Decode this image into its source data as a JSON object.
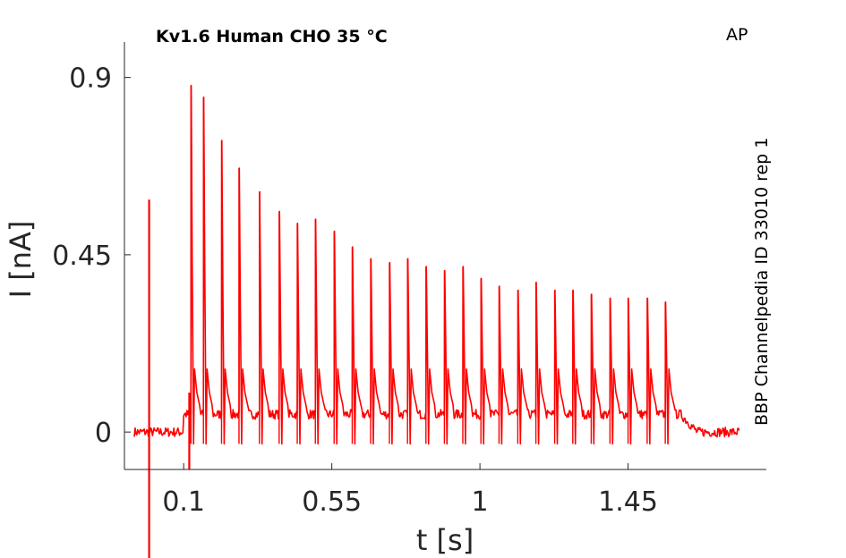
{
  "chart_data": {
    "type": "line",
    "title": "Kv1.6  Human  CHO  35 °C",
    "corner_label": "AP",
    "side_label": "BBP Channelpedia ID 33010 rep 1",
    "xlabel": "t [s]",
    "ylabel": "I [nA]",
    "xlim": [
      -0.08,
      1.87
    ],
    "ylim": [
      -0.095,
      0.99
    ],
    "x_ticks": [
      0.1,
      0.55,
      1,
      1.45
    ],
    "x_tick_labels": [
      "0.1",
      "0.55",
      "1",
      "1.45"
    ],
    "y_ticks": [
      0,
      0.45,
      0.9
    ],
    "y_tick_labels": [
      "0",
      "0.45",
      "0.9"
    ],
    "grid": false,
    "series": [
      {
        "color": "#ff0000",
        "baseline_before": 0.0,
        "baseline_during": 0.045,
        "baseline_after": 0.0,
        "stim_start": 0.1,
        "stim_end": 1.61,
        "t_end": 1.79,
        "artifact": {
          "t": -0.005,
          "top": 0.59,
          "bottom": -0.32
        },
        "spike_times": [
          0.122,
          0.16,
          0.215,
          0.268,
          0.33,
          0.39,
          0.445,
          0.5,
          0.557,
          0.612,
          0.668,
          0.725,
          0.78,
          0.836,
          0.892,
          0.948,
          1.003,
          1.058,
          1.115,
          1.17,
          1.227,
          1.282,
          1.338,
          1.395,
          1.45,
          1.508,
          1.563
        ],
        "spike_peaks": [
          0.88,
          0.85,
          0.74,
          0.67,
          0.61,
          0.56,
          0.53,
          0.54,
          0.51,
          0.47,
          0.44,
          0.43,
          0.44,
          0.42,
          0.41,
          0.42,
          0.39,
          0.37,
          0.36,
          0.38,
          0.36,
          0.36,
          0.35,
          0.34,
          0.34,
          0.34,
          0.33
        ]
      }
    ]
  }
}
